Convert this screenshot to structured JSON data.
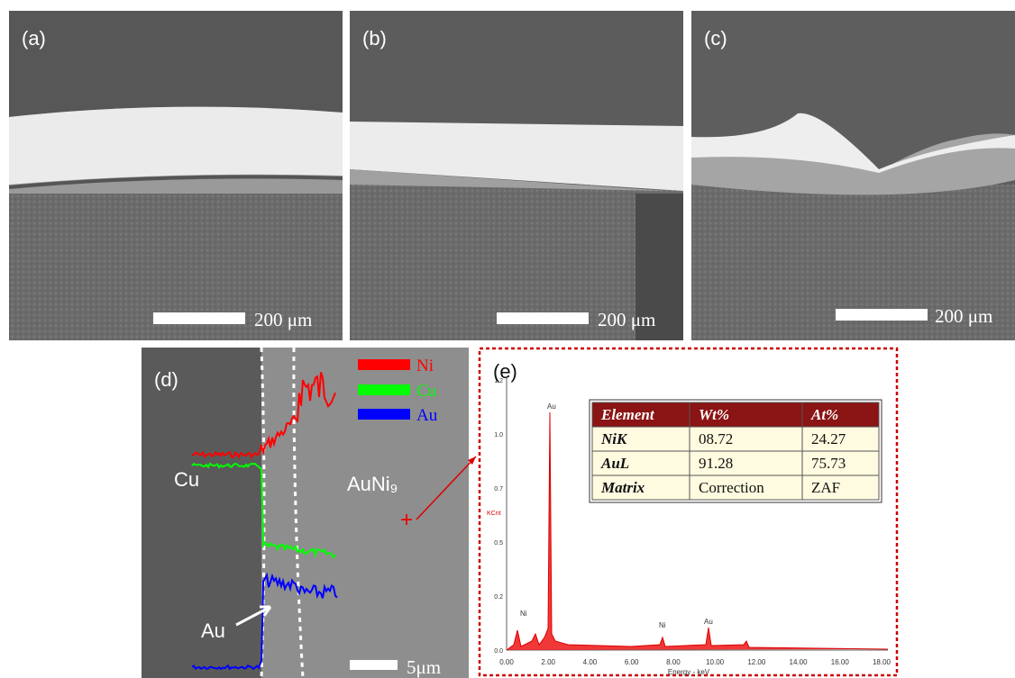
{
  "panels": {
    "a": {
      "label": "(a)",
      "scale": "200 μm"
    },
    "b": {
      "label": "(b)",
      "scale": "200 μm"
    },
    "c": {
      "label": "(c)",
      "scale": "200 μm"
    }
  },
  "profile": {
    "label": "(d)",
    "legend": [
      "Ni",
      "Cu",
      "Au"
    ],
    "cu": "Cu",
    "alloy": "AuNi₉",
    "au": "Au",
    "scale": "5μm"
  },
  "spectrum": {
    "label": "(e)",
    "ylabel": "KCnt",
    "xlabel": "Energy - keV",
    "yticks": [
      "0.0",
      "0.2",
      "0.5",
      "0.7",
      "1.0",
      "1.2"
    ],
    "xticks": [
      "0.00",
      "2.00",
      "4.00",
      "6.00",
      "8.00",
      "10.00",
      "12.00",
      "14.00",
      "16.00",
      "18.00"
    ],
    "peaks": [
      "Ni",
      "Au",
      "Ni",
      "Au"
    ]
  },
  "table": {
    "header": [
      "Element",
      "Wt%",
      "At%"
    ],
    "rows": [
      [
        "NiK",
        "08.72",
        "24.27"
      ],
      [
        "AuL",
        "91.28",
        "75.73"
      ],
      [
        "Matrix",
        "Correction",
        "ZAF"
      ]
    ]
  }
}
